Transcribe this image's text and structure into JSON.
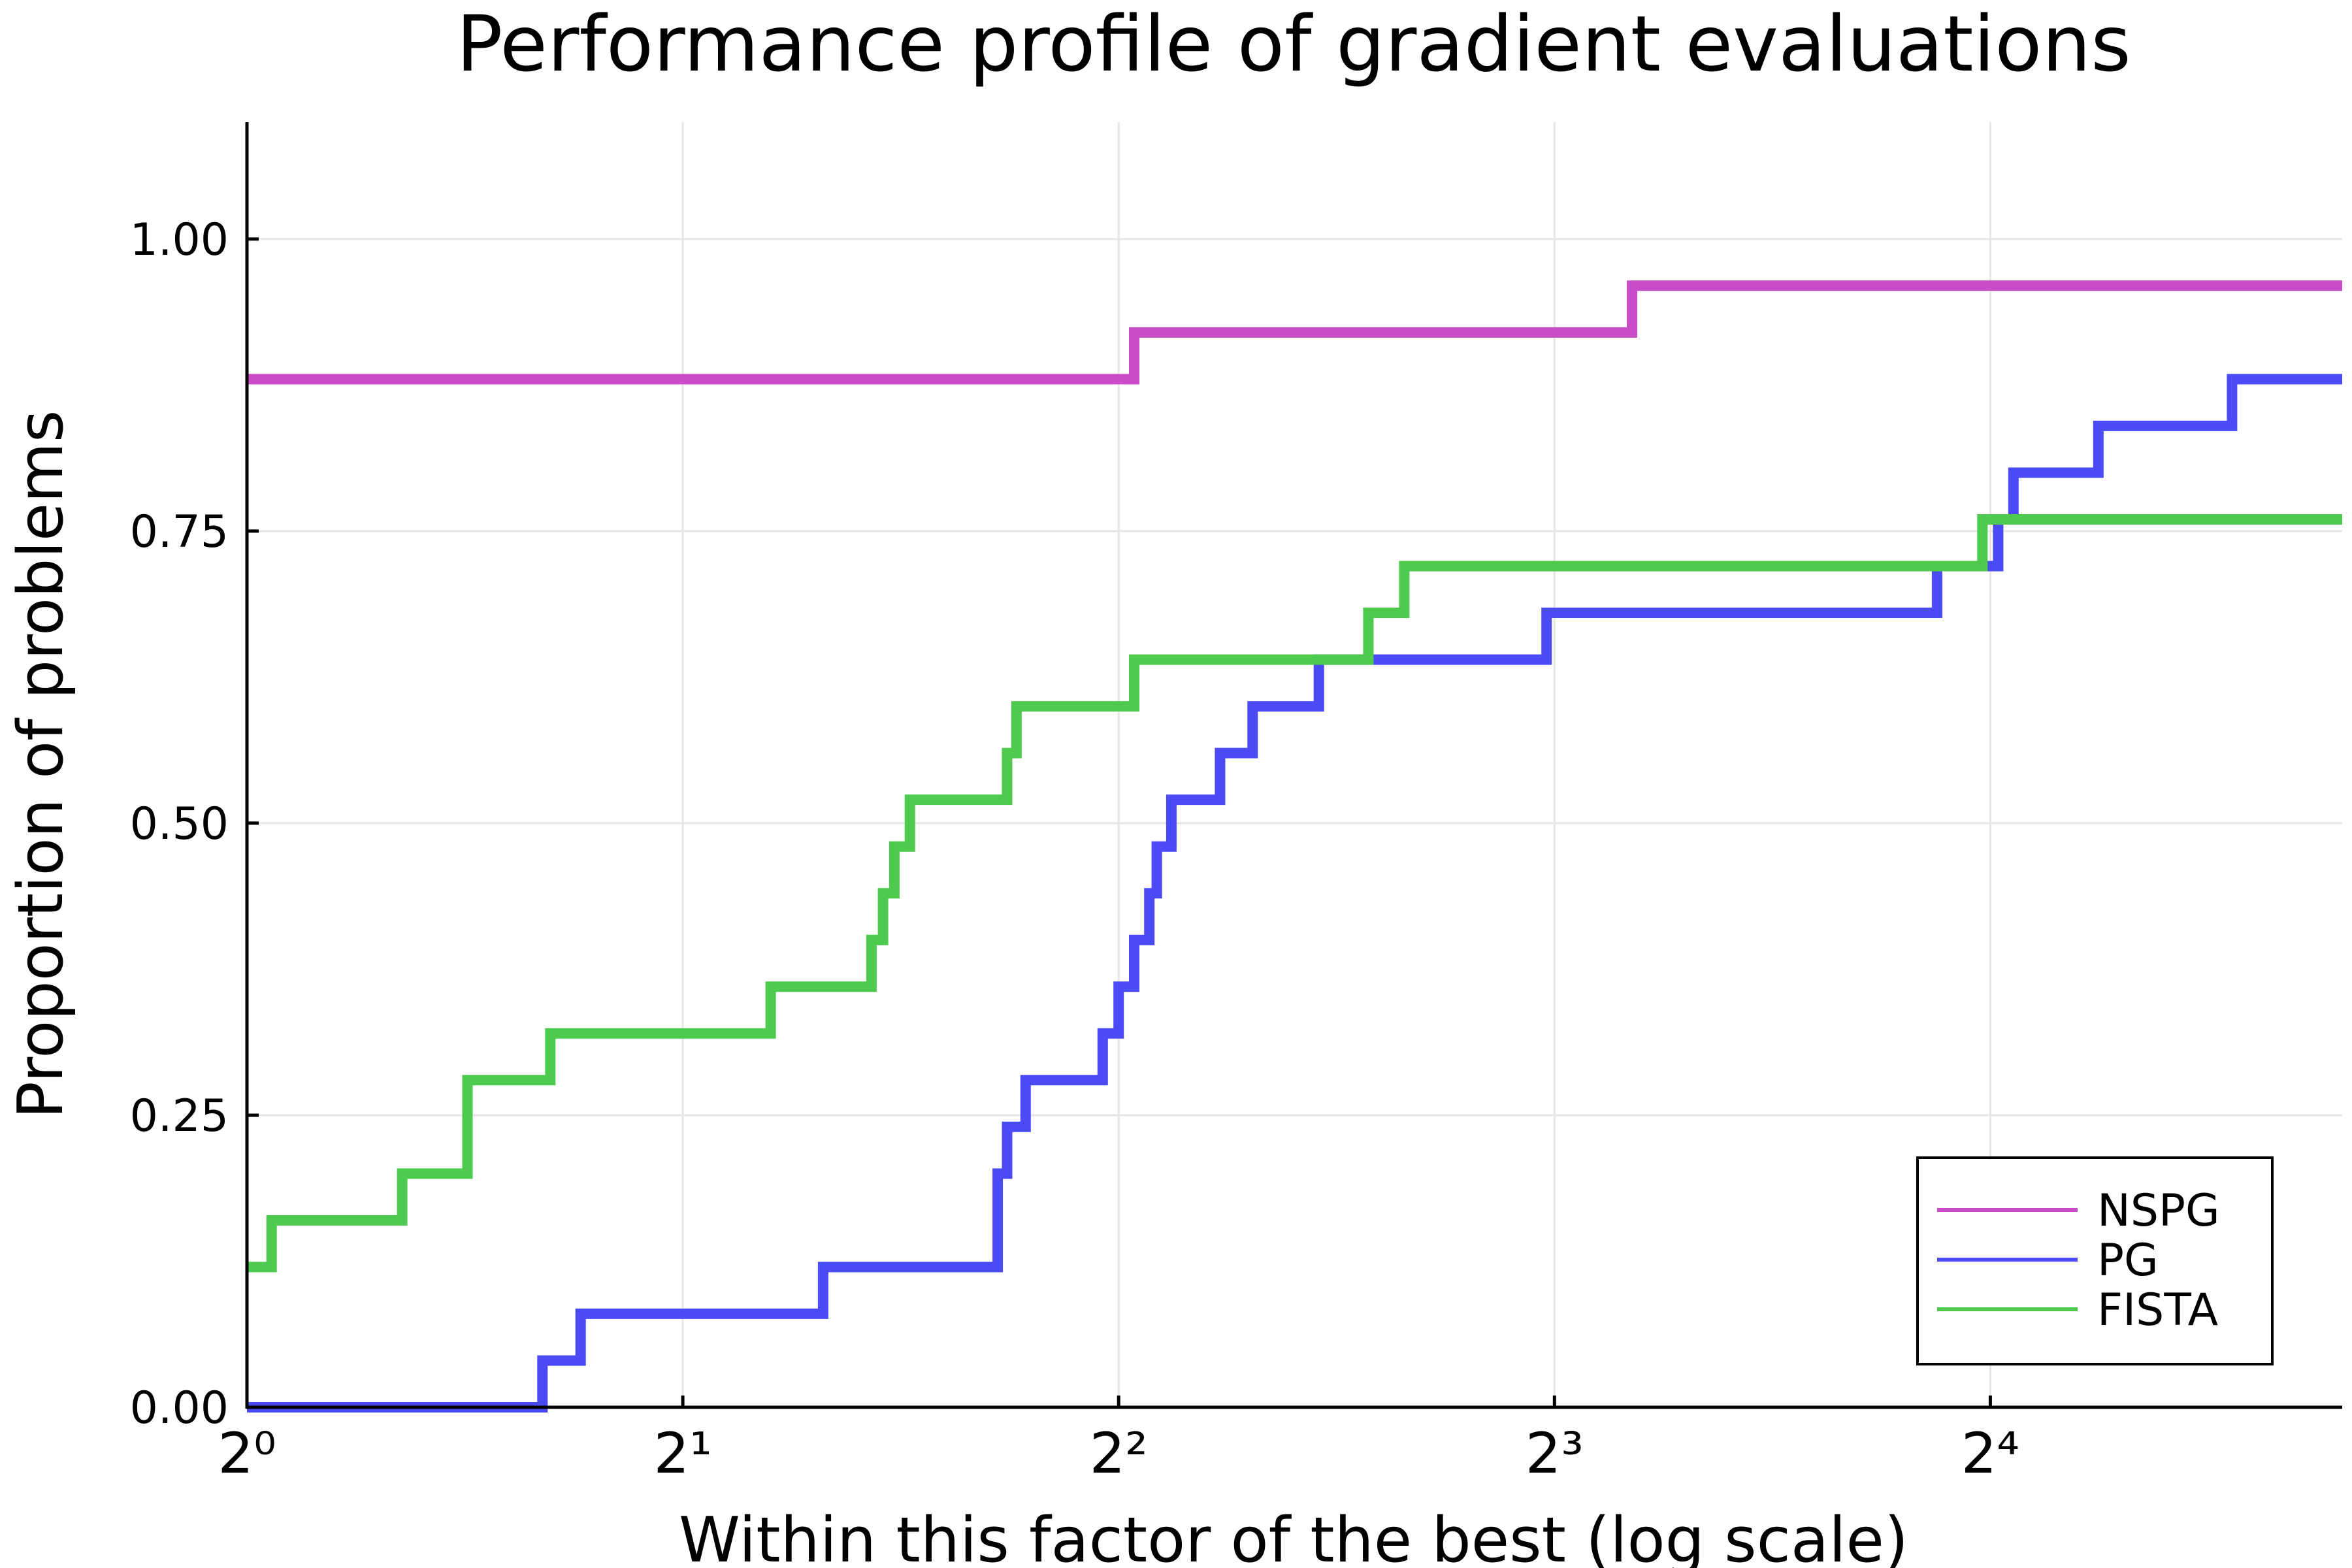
{
  "chart_data": {
    "type": "line",
    "step": "post",
    "title": "Performance profile of gradient evaluations",
    "xlabel": "Within this factor of the best (log scale)",
    "ylabel": "Proportion of problems",
    "x_scale": "log2",
    "xlim": [
      1,
      28
    ],
    "ylim": [
      0,
      1.1
    ],
    "x_ticks": [
      {
        "value": 1,
        "label": "2⁰"
      },
      {
        "value": 2,
        "label": "2¹"
      },
      {
        "value": 4,
        "label": "2²"
      },
      {
        "value": 8,
        "label": "2³"
      },
      {
        "value": 16,
        "label": "2⁴"
      }
    ],
    "y_ticks": [
      {
        "value": 0.0,
        "label": "0.00"
      },
      {
        "value": 0.25,
        "label": "0.25"
      },
      {
        "value": 0.5,
        "label": "0.50"
      },
      {
        "value": 0.75,
        "label": "0.75"
      },
      {
        "value": 1.0,
        "label": "1.00"
      }
    ],
    "grid": true,
    "legend_position": "bottom-right",
    "series": [
      {
        "name": "NSPG",
        "color": "#c84bc8",
        "x": [
          1,
          4.1,
          9.05,
          28
        ],
        "y": [
          0.88,
          0.92,
          0.96,
          0.96
        ]
      },
      {
        "name": "PG",
        "color": "#4b4bf5",
        "x": [
          1,
          1.6,
          1.7,
          2.5,
          3.3,
          3.35,
          3.45,
          3.9,
          4.0,
          4.1,
          4.2,
          4.25,
          4.35,
          4.7,
          4.95,
          5.5,
          7.9,
          14.7,
          16.2,
          16.6,
          19.0,
          23.5,
          28
        ],
        "y": [
          0.0,
          0.04,
          0.08,
          0.12,
          0.2,
          0.24,
          0.28,
          0.32,
          0.36,
          0.4,
          0.44,
          0.48,
          0.52,
          0.56,
          0.6,
          0.64,
          0.68,
          0.72,
          0.76,
          0.8,
          0.84,
          0.88,
          0.88
        ]
      },
      {
        "name": "FISTA",
        "color": "#4ecb4e",
        "x": [
          1,
          1.04,
          1.28,
          1.42,
          1.62,
          2.3,
          2.7,
          2.75,
          2.8,
          2.87,
          3.35,
          3.4,
          4.1,
          5.95,
          6.3,
          15.8,
          28
        ],
        "y": [
          0.12,
          0.16,
          0.2,
          0.28,
          0.32,
          0.36,
          0.4,
          0.44,
          0.48,
          0.52,
          0.56,
          0.6,
          0.64,
          0.68,
          0.72,
          0.76,
          0.76
        ]
      }
    ]
  }
}
